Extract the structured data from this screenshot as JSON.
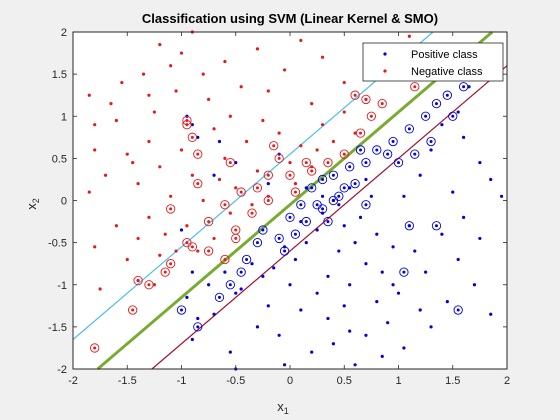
{
  "chart_data": {
    "type": "scatter",
    "title": "Classification using SVM (Linear Kernel & SMO)",
    "xlabel": "x",
    "xlabel_sub": "1",
    "ylabel": "x",
    "ylabel_sub": "2",
    "xlim": [
      -2,
      2
    ],
    "ylim": [
      -2,
      2
    ],
    "xticks": [
      "-2",
      "-1.5",
      "-1",
      "-0.5",
      "0",
      "0.5",
      "1",
      "1.5",
      "2"
    ],
    "yticks": [
      "2",
      "1.5",
      "1",
      "0.5",
      "0",
      "-0.5",
      "-1",
      "-1.5",
      "-2"
    ],
    "grid": false,
    "legend_position": "top-right",
    "colors": {
      "positive": "#0000e0",
      "negative": "#e41a1c",
      "boundary": "#77ac30",
      "positive_margin": "#a2142f",
      "negative_margin": "#4dbeee",
      "axes": "#262626"
    },
    "lines": [
      {
        "role": "decision-boundary",
        "slope": 1.1,
        "intercept": -0.05,
        "x": [
          -2,
          2
        ]
      },
      {
        "role": "margin-positive",
        "slope": 1.1,
        "intercept": -0.6,
        "x": [
          -2,
          2
        ]
      },
      {
        "role": "margin-negative",
        "slope": 1.1,
        "intercept": 0.55,
        "x": [
          -2,
          2
        ]
      }
    ],
    "series": [
      {
        "name": "Positive class",
        "marker": "dot",
        "points": [
          [
            -0.95,
            1.0
          ],
          [
            -0.9,
            0.9
          ],
          [
            -0.85,
            0.75
          ],
          [
            -0.65,
            0.7
          ],
          [
            -0.7,
            0.3
          ],
          [
            -0.5,
            0.45
          ],
          [
            -0.1,
            0.55
          ],
          [
            0.15,
            0.15
          ],
          [
            0.3,
            0.05
          ],
          [
            -0.2,
            0.2
          ],
          [
            -1.4,
            -0.95
          ],
          [
            -1.0,
            -0.35
          ],
          [
            -0.9,
            -0.85
          ],
          [
            -0.95,
            -1.15
          ],
          [
            -0.85,
            -1.4
          ],
          [
            -0.9,
            -1.65
          ],
          [
            -0.7,
            -1.35
          ],
          [
            -0.5,
            -1.1
          ],
          [
            -0.55,
            -1.8
          ],
          [
            -0.5,
            -2.0
          ],
          [
            -0.3,
            -1.5
          ],
          [
            -0.2,
            -1.25
          ],
          [
            -0.1,
            -1.6
          ],
          [
            -0.05,
            -1.95
          ],
          [
            0.0,
            -1.0
          ],
          [
            0.1,
            -1.3
          ],
          [
            0.2,
            -1.8
          ],
          [
            0.35,
            -1.4
          ],
          [
            0.4,
            -1.7
          ],
          [
            0.5,
            -1.25
          ],
          [
            0.55,
            -1.55
          ],
          [
            0.6,
            -1.95
          ],
          [
            0.7,
            -1.6
          ],
          [
            0.8,
            -1.2
          ],
          [
            0.85,
            -1.85
          ],
          [
            0.9,
            -1.45
          ],
          [
            1.0,
            -1.1
          ],
          [
            1.05,
            -1.75
          ],
          [
            1.2,
            -1.3
          ],
          [
            1.3,
            -1.5
          ],
          [
            1.45,
            -1.2
          ],
          [
            1.55,
            -0.7
          ],
          [
            1.7,
            -1.0
          ],
          [
            1.85,
            -1.35
          ],
          [
            1.75,
            -0.45
          ],
          [
            1.6,
            -0.2
          ],
          [
            1.85,
            0.25
          ],
          [
            1.95,
            0.05
          ],
          [
            1.75,
            0.45
          ],
          [
            1.6,
            0.75
          ],
          [
            1.55,
            1.05
          ],
          [
            1.65,
            1.35
          ],
          [
            1.4,
            0.9
          ],
          [
            1.3,
            0.6
          ],
          [
            1.2,
            0.3
          ],
          [
            1.05,
            0.05
          ],
          [
            1.1,
            -0.3
          ],
          [
            0.95,
            -0.55
          ],
          [
            0.85,
            -0.85
          ],
          [
            0.7,
            -0.75
          ],
          [
            0.6,
            -0.5
          ],
          [
            0.5,
            -0.3
          ],
          [
            0.45,
            -0.05
          ],
          [
            0.55,
            0.15
          ],
          [
            0.7,
            0.25
          ],
          [
            0.75,
            0.05
          ],
          [
            0.65,
            -0.2
          ],
          [
            0.4,
            0.0
          ],
          [
            0.3,
            -0.15
          ],
          [
            0.25,
            -0.35
          ],
          [
            0.15,
            -0.5
          ],
          [
            0.1,
            -0.25
          ],
          [
            0.05,
            -0.7
          ],
          [
            -0.05,
            -0.55
          ],
          [
            -0.15,
            -0.8
          ],
          [
            -0.25,
            -0.9
          ],
          [
            -0.35,
            -0.75
          ],
          [
            -0.45,
            -1.05
          ],
          [
            -0.6,
            -0.85
          ],
          [
            -0.75,
            -1.0
          ],
          [
            0.35,
            -0.9
          ],
          [
            0.45,
            -0.6
          ],
          [
            0.25,
            -1.1
          ],
          [
            0.95,
            -1.0
          ],
          [
            1.25,
            -0.85
          ],
          [
            1.4,
            -0.4
          ],
          [
            1.5,
            0.1
          ],
          [
            1.15,
            -0.6
          ],
          [
            0.8,
            -0.4
          ],
          [
            0.55,
            -1.0
          ]
        ]
      },
      {
        "name": "Negative class",
        "marker": "dot",
        "points": [
          [
            -1.85,
            1.25
          ],
          [
            -1.8,
            0.9
          ],
          [
            -1.8,
            0.6
          ],
          [
            -1.85,
            0.1
          ],
          [
            -1.8,
            -0.55
          ],
          [
            -1.75,
            -1.05
          ],
          [
            -1.6,
            0.95
          ],
          [
            -1.55,
            1.4
          ],
          [
            -1.35,
            1.5
          ],
          [
            -1.2,
            1.85
          ],
          [
            -1.1,
            1.6
          ],
          [
            -1.05,
            1.3
          ],
          [
            -1.0,
            1.75
          ],
          [
            -0.9,
            2.0
          ],
          [
            -0.8,
            1.5
          ],
          [
            -0.75,
            1.2
          ],
          [
            -0.6,
            1.65
          ],
          [
            -0.45,
            1.35
          ],
          [
            -0.3,
            1.8
          ],
          [
            -0.2,
            1.3
          ],
          [
            -0.05,
            1.55
          ],
          [
            0.1,
            1.9
          ],
          [
            0.3,
            1.7
          ],
          [
            0.5,
            1.4
          ],
          [
            0.7,
            1.85
          ],
          [
            0.85,
            1.6
          ],
          [
            1.1,
            1.95
          ],
          [
            1.3,
            1.8
          ],
          [
            1.45,
            1.7
          ],
          [
            -1.5,
            0.55
          ],
          [
            -1.4,
            0.2
          ],
          [
            -1.3,
            0.7
          ],
          [
            -1.2,
            0.4
          ],
          [
            -1.1,
            0.05
          ],
          [
            -1.0,
            0.6
          ],
          [
            -0.9,
            0.3
          ],
          [
            -0.8,
            0.0
          ],
          [
            -0.7,
            0.85
          ],
          [
            -0.6,
            0.5
          ],
          [
            -0.5,
            0.15
          ],
          [
            -0.4,
            0.7
          ],
          [
            -0.3,
            0.35
          ],
          [
            -0.2,
            0.05
          ],
          [
            -0.1,
            0.8
          ],
          [
            0.0,
            0.45
          ],
          [
            0.1,
            0.65
          ],
          [
            0.2,
            0.4
          ],
          [
            0.3,
            0.9
          ],
          [
            0.4,
            0.7
          ],
          [
            0.5,
            1.05
          ],
          [
            0.6,
            0.8
          ],
          [
            0.7,
            1.2
          ],
          [
            -1.6,
            -0.3
          ],
          [
            -1.5,
            -0.7
          ],
          [
            -1.3,
            -0.2
          ],
          [
            -1.2,
            -0.65
          ],
          [
            -1.05,
            -0.6
          ],
          [
            -0.95,
            -0.3
          ],
          [
            -0.85,
            -0.6
          ],
          [
            -0.7,
            -0.45
          ],
          [
            -0.55,
            -0.15
          ],
          [
            -1.25,
            -1.0
          ],
          [
            -1.45,
            0.45
          ],
          [
            -1.25,
            1.05
          ],
          [
            -0.55,
            1.0
          ],
          [
            -0.25,
            0.95
          ],
          [
            0.2,
            1.15
          ],
          [
            -1.65,
            1.15
          ],
          [
            -1.7,
            0.3
          ],
          [
            -1.4,
            -0.45
          ],
          [
            -1.15,
            -0.4
          ],
          [
            -0.35,
            -0.05
          ],
          [
            0.05,
            0.2
          ],
          [
            0.25,
            0.6
          ],
          [
            -1.3,
            1.25
          ],
          [
            -0.65,
            0.25
          ]
        ]
      }
    ],
    "support_vectors": [
      [
        -0.95,
        0.9
      ],
      [
        -0.9,
        0.75
      ],
      [
        -0.85,
        0.2
      ],
      [
        -0.55,
        0.45
      ],
      [
        -0.1,
        0.5
      ],
      [
        0.2,
        0.15
      ],
      [
        0.3,
        0.25
      ],
      [
        0.4,
        0.3
      ],
      [
        0.55,
        0.4
      ],
      [
        0.65,
        0.6
      ],
      [
        0.7,
        0.45
      ],
      [
        0.8,
        0.6
      ],
      [
        0.95,
        0.7
      ],
      [
        1.1,
        0.85
      ],
      [
        1.25,
        1.0
      ],
      [
        1.35,
        1.15
      ],
      [
        1.45,
        1.25
      ],
      [
        1.6,
        1.35
      ],
      [
        1.85,
        1.5
      ],
      [
        0.1,
        -0.05
      ],
      [
        0.15,
        -0.25
      ],
      [
        0.05,
        -0.4
      ],
      [
        -0.05,
        -0.6
      ],
      [
        -0.1,
        -0.45
      ],
      [
        0.0,
        -0.2
      ],
      [
        0.3,
        -0.1
      ],
      [
        0.45,
        0.05
      ],
      [
        0.5,
        0.15
      ],
      [
        0.6,
        0.2
      ],
      [
        -0.3,
        -0.5
      ],
      [
        -0.4,
        -0.7
      ],
      [
        -0.45,
        -0.85
      ],
      [
        -0.55,
        -1.0
      ],
      [
        -0.65,
        -1.15
      ],
      [
        -0.85,
        -1.5
      ],
      [
        -1.0,
        -1.3
      ],
      [
        -1.1,
        -0.1
      ],
      [
        -1.4,
        -0.95
      ],
      [
        1.0,
        0.45
      ],
      [
        0.9,
        0.55
      ],
      [
        1.15,
        0.55
      ],
      [
        1.3,
        0.7
      ],
      [
        1.5,
        1.0
      ],
      [
        0.35,
        -0.25
      ],
      [
        0.25,
        -0.05
      ],
      [
        -0.25,
        -0.35
      ],
      [
        -0.9,
        -0.55
      ],
      [
        -0.75,
        -0.6
      ],
      [
        -0.6,
        -0.7
      ],
      [
        -0.5,
        -0.45
      ],
      [
        -0.35,
        -0.15
      ],
      [
        -0.2,
        0.0
      ],
      [
        0.05,
        0.1
      ],
      [
        0.0,
        0.3
      ],
      [
        0.2,
        0.35
      ],
      [
        0.35,
        0.45
      ],
      [
        0.5,
        0.55
      ],
      [
        0.65,
        0.8
      ],
      [
        0.75,
        1.0
      ],
      [
        0.85,
        1.15
      ],
      [
        0.6,
        1.25
      ],
      [
        0.7,
        1.2
      ],
      [
        0.8,
        1.6
      ],
      [
        0.95,
        1.7
      ],
      [
        1.05,
        1.55
      ],
      [
        1.15,
        1.35
      ],
      [
        -0.2,
        0.3
      ],
      [
        -0.3,
        0.15
      ],
      [
        -0.45,
        0.1
      ],
      [
        -0.6,
        -0.05
      ],
      [
        -0.75,
        -0.25
      ],
      [
        -0.95,
        -0.5
      ],
      [
        -1.1,
        -0.75
      ],
      [
        -1.15,
        -0.85
      ],
      [
        -1.3,
        -1.0
      ],
      [
        -1.45,
        -1.3
      ],
      [
        -1.8,
        -1.75
      ],
      [
        -0.5,
        -0.35
      ],
      [
        0.4,
        -0.0
      ],
      [
        0.7,
        -0.05
      ],
      [
        1.1,
        -0.3
      ],
      [
        1.35,
        -0.3
      ],
      [
        1.55,
        -1.3
      ],
      [
        1.05,
        -0.85
      ],
      [
        -0.85,
        0.55
      ],
      [
        -0.95,
        0.95
      ],
      [
        -0.15,
        0.65
      ],
      [
        0.15,
        0.45
      ]
    ]
  }
}
